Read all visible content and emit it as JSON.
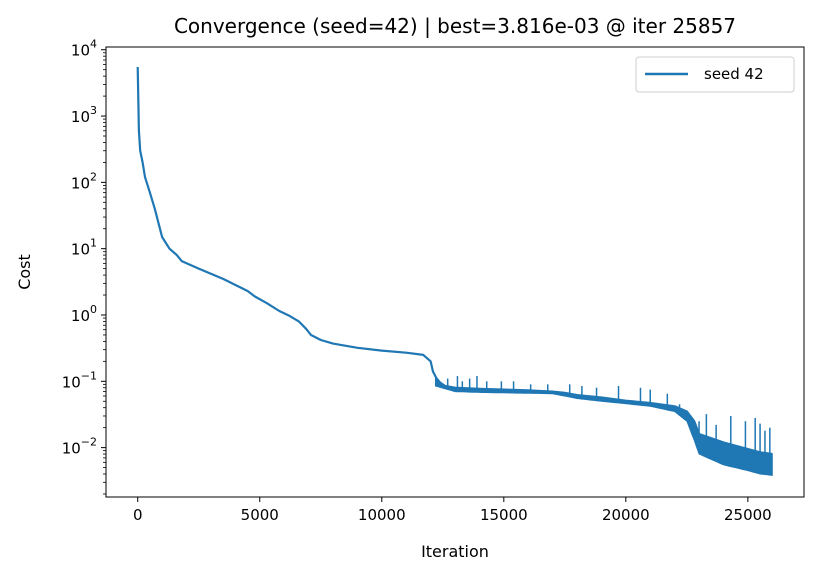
{
  "chart_data": {
    "type": "line",
    "title": "Convergence (seed=42) | best=3.816e-03 @ iter 25857",
    "xlabel": "Iteration",
    "ylabel": "Cost",
    "xlim": [
      -1300,
      27300
    ],
    "ylim": [
      0.0018,
      11000
    ],
    "y_scale": "log",
    "x_ticks": [
      0,
      5000,
      10000,
      15000,
      20000,
      25000
    ],
    "y_ticks": [
      {
        "value": 0.01,
        "base": "10",
        "exp": "−2"
      },
      {
        "value": 0.1,
        "base": "10",
        "exp": "−1"
      },
      {
        "value": 1,
        "base": "10",
        "exp": "0"
      },
      {
        "value": 10,
        "base": "10",
        "exp": "1"
      },
      {
        "value": 100,
        "base": "10",
        "exp": "2"
      },
      {
        "value": 1000,
        "base": "10",
        "exp": "3"
      },
      {
        "value": 10000,
        "base": "10",
        "exp": "4"
      }
    ],
    "grid": false,
    "legend_position": "top-right",
    "series": [
      {
        "name": "seed 42",
        "color": "#1f77b4",
        "x": [
          0,
          50,
          100,
          200,
          300,
          500,
          700,
          1000,
          1300,
          1600,
          1800,
          2500,
          3500,
          4500,
          4800,
          5300,
          5800,
          6200,
          6600,
          6900,
          7100,
          7500,
          8000,
          9000,
          10000,
          11000,
          11700,
          12000,
          12100,
          12250,
          12400,
          12600,
          13000,
          14000,
          15000,
          16000,
          17000,
          17500,
          18000,
          19000,
          20000,
          21000,
          22000,
          22500,
          22800,
          23000,
          24000,
          25000,
          25500,
          26000
        ],
        "y": [
          5500,
          600,
          300,
          200,
          120,
          70,
          40,
          15,
          10,
          8,
          6.5,
          5,
          3.5,
          2.3,
          1.9,
          1.5,
          1.15,
          0.98,
          0.8,
          0.62,
          0.5,
          0.42,
          0.37,
          0.32,
          0.29,
          0.27,
          0.25,
          0.2,
          0.14,
          0.11,
          0.095,
          0.085,
          0.08,
          0.077,
          0.075,
          0.073,
          0.07,
          0.067,
          0.062,
          0.057,
          0.051,
          0.047,
          0.042,
          0.035,
          0.025,
          0.016,
          0.012,
          0.0095,
          0.0085,
          0.008
        ],
        "noise_floor": {
          "x": [
            12200,
            13000,
            14000,
            15000,
            16000,
            17000,
            17500,
            18000,
            19000,
            20000,
            21000,
            22000,
            22500,
            22800,
            23000,
            24000,
            25000,
            25500,
            26000
          ],
          "y": [
            0.085,
            0.07,
            0.068,
            0.067,
            0.066,
            0.065,
            0.06,
            0.055,
            0.05,
            0.046,
            0.042,
            0.035,
            0.025,
            0.013,
            0.008,
            0.0055,
            0.0045,
            0.004,
            0.00382
          ]
        },
        "spikes": [
          {
            "x": 12700,
            "y": 0.11
          },
          {
            "x": 13100,
            "y": 0.12
          },
          {
            "x": 13300,
            "y": 0.1
          },
          {
            "x": 13600,
            "y": 0.11
          },
          {
            "x": 13900,
            "y": 0.12
          },
          {
            "x": 14300,
            "y": 0.1
          },
          {
            "x": 14900,
            "y": 0.1
          },
          {
            "x": 15400,
            "y": 0.1
          },
          {
            "x": 16100,
            "y": 0.09
          },
          {
            "x": 16800,
            "y": 0.09
          },
          {
            "x": 17700,
            "y": 0.09
          },
          {
            "x": 18200,
            "y": 0.085
          },
          {
            "x": 18800,
            "y": 0.08
          },
          {
            "x": 19700,
            "y": 0.085
          },
          {
            "x": 20600,
            "y": 0.08
          },
          {
            "x": 21000,
            "y": 0.075
          },
          {
            "x": 21700,
            "y": 0.065
          },
          {
            "x": 22200,
            "y": 0.045
          },
          {
            "x": 23000,
            "y": 0.025
          },
          {
            "x": 23300,
            "y": 0.032
          },
          {
            "x": 23700,
            "y": 0.022
          },
          {
            "x": 24300,
            "y": 0.03
          },
          {
            "x": 24900,
            "y": 0.025
          },
          {
            "x": 25300,
            "y": 0.028
          },
          {
            "x": 25500,
            "y": 0.023
          },
          {
            "x": 25700,
            "y": 0.018
          },
          {
            "x": 25900,
            "y": 0.02
          }
        ]
      }
    ]
  }
}
